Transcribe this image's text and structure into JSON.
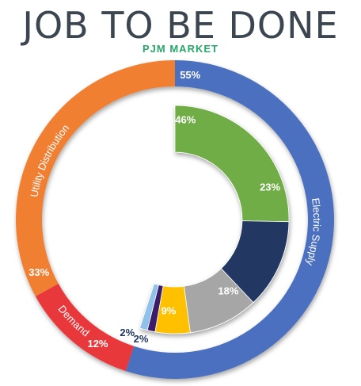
{
  "chart_data": {
    "type": "pie",
    "title": "JOB TO BE DONE",
    "subtitle": "PJM MARKET",
    "outer_ring": [
      {
        "name": "Electric Supply",
        "value": 55,
        "label": "55%",
        "color": "#4b6fbf"
      },
      {
        "name": "Demand",
        "value": 12,
        "label": "12%",
        "color": "#e8383b"
      },
      {
        "name": "Utility Distribution",
        "value": 33,
        "label": "33%",
        "color": "#f07f31"
      }
    ],
    "inner_ring": [
      {
        "value": 46,
        "label": "46%",
        "color": "#70ad47"
      },
      {
        "value": 23,
        "label": "23%",
        "color": "#203864"
      },
      {
        "value": 18,
        "label": "18%",
        "color": "#a6a6a6"
      },
      {
        "value": 9,
        "label": "9%",
        "color": "#ffc000"
      },
      {
        "value": 2,
        "label": "2%",
        "color": "#3b1f6b"
      },
      {
        "value": 2,
        "label": "2%",
        "color": "#8fc1ea"
      }
    ]
  }
}
